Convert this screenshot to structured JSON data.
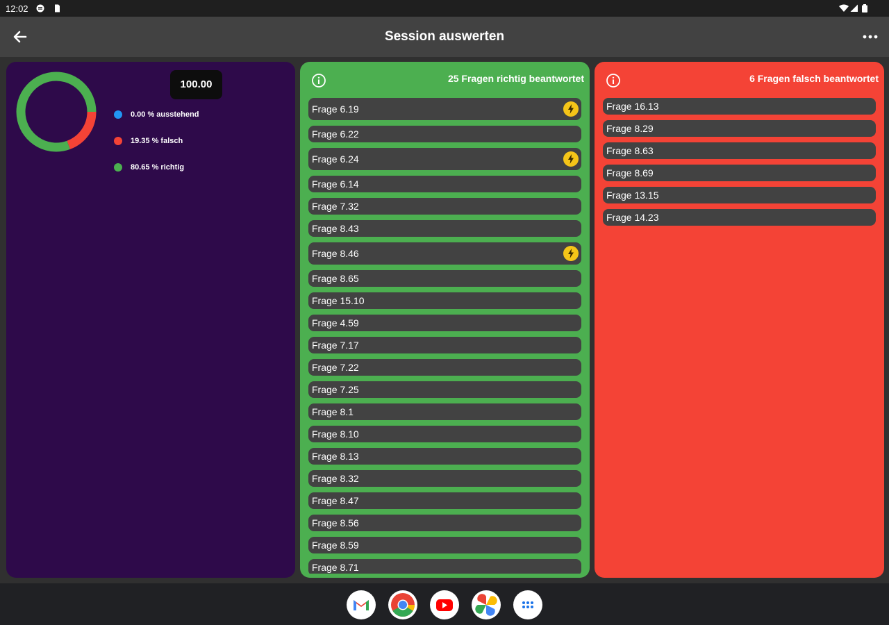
{
  "status": {
    "time": "12:02"
  },
  "appbar": {
    "title": "Session auswerten",
    "back_icon": "arrow-back-icon",
    "menu_icon": "more-horiz-icon"
  },
  "stats": {
    "score": "100.00",
    "legend": [
      {
        "label": "0.00 % ausstehend",
        "color": "#2196f3"
      },
      {
        "label": "19.35 % falsch",
        "color": "#f44336"
      },
      {
        "label": "80.65 % richtig",
        "color": "#4caf50"
      }
    ],
    "chart_data": {
      "type": "pie",
      "categories": [
        "ausstehend",
        "falsch",
        "richtig"
      ],
      "values": [
        0.0,
        19.35,
        80.65
      ],
      "colors": [
        "#2196f3",
        "#f44336",
        "#4caf50"
      ]
    }
  },
  "correct": {
    "header": "25 Fragen richtig beantwortet",
    "color": "#4caf50",
    "items": [
      {
        "label": "Frage 6.19",
        "flag": true
      },
      {
        "label": "Frage 6.22",
        "flag": false
      },
      {
        "label": "Frage 6.24",
        "flag": true
      },
      {
        "label": "Frage 6.14",
        "flag": false
      },
      {
        "label": "Frage 7.32",
        "flag": false
      },
      {
        "label": "Frage 8.43",
        "flag": false
      },
      {
        "label": "Frage 8.46",
        "flag": true
      },
      {
        "label": "Frage 8.65",
        "flag": false
      },
      {
        "label": "Frage 15.10",
        "flag": false
      },
      {
        "label": "Frage 4.59",
        "flag": false
      },
      {
        "label": "Frage 7.17",
        "flag": false
      },
      {
        "label": "Frage 7.22",
        "flag": false
      },
      {
        "label": "Frage 7.25",
        "flag": false
      },
      {
        "label": "Frage 8.1",
        "flag": false
      },
      {
        "label": "Frage 8.10",
        "flag": false
      },
      {
        "label": "Frage 8.13",
        "flag": false
      },
      {
        "label": "Frage 8.32",
        "flag": false
      },
      {
        "label": "Frage 8.47",
        "flag": false
      },
      {
        "label": "Frage 8.56",
        "flag": false
      },
      {
        "label": "Frage 8.59",
        "flag": false
      },
      {
        "label": "Frage 8.71",
        "flag": false
      }
    ]
  },
  "wrong": {
    "header": "6 Fragen falsch beantwortet",
    "color": "#f44336",
    "items": [
      {
        "label": "Frage 16.13"
      },
      {
        "label": "Frage 8.29"
      },
      {
        "label": "Frage 8.63"
      },
      {
        "label": "Frage 8.69"
      },
      {
        "label": "Frage 13.15"
      },
      {
        "label": "Frage 14.23"
      }
    ]
  },
  "dock": {
    "apps": [
      {
        "name": "gmail-icon"
      },
      {
        "name": "chrome-icon"
      },
      {
        "name": "youtube-icon"
      },
      {
        "name": "photos-icon"
      },
      {
        "name": "app-drawer-icon"
      }
    ]
  }
}
